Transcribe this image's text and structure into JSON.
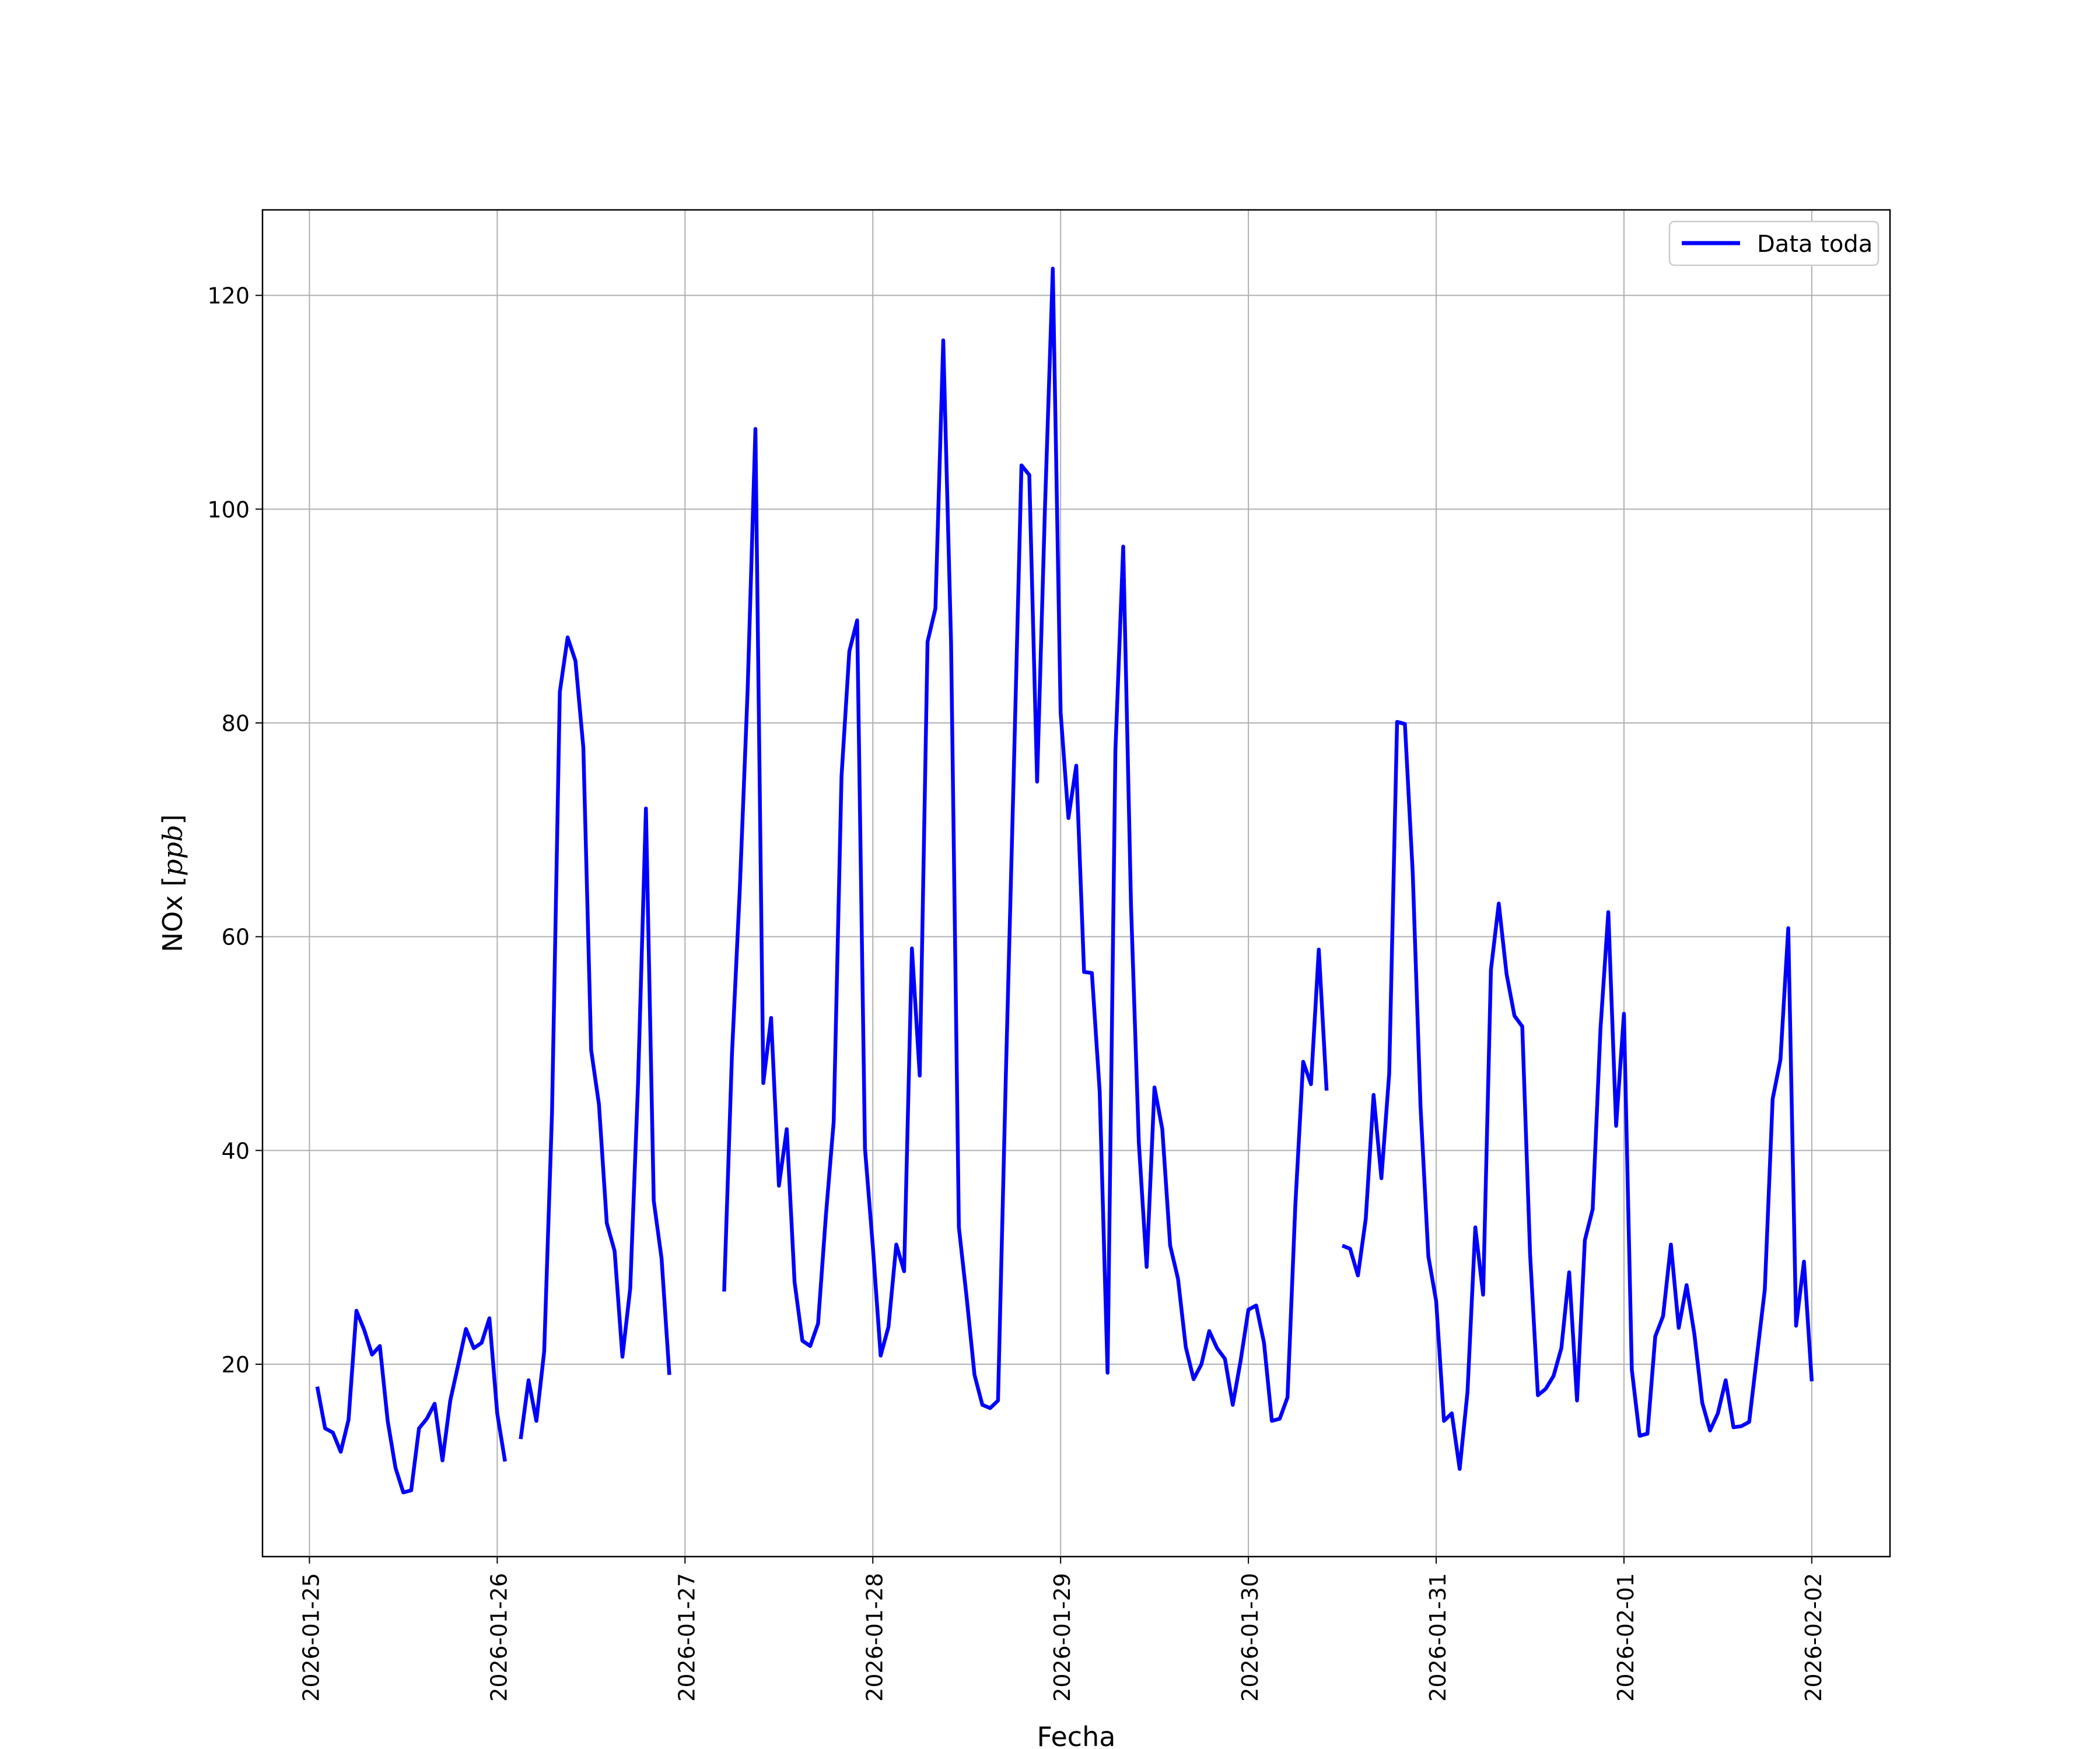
{
  "chart_data": {
    "type": "line",
    "xlabel": "Fecha",
    "ylabel_text": "NOx [",
    "ylabel_unit": "ppb",
    "ylabel_close": "]",
    "ylim": [
      2,
      128
    ],
    "xlim": [
      "2026-01-24 18:00",
      "2026-02-02 10:00"
    ],
    "grid": true,
    "legend_position": "top-right",
    "x_ticks": [
      "2026-01-25",
      "2026-01-26",
      "2026-01-27",
      "2026-01-28",
      "2026-01-29",
      "2026-01-30",
      "2026-01-31",
      "2026-02-01",
      "2026-02-02"
    ],
    "y_ticks": [
      20,
      40,
      60,
      80,
      100,
      120
    ],
    "series": [
      {
        "name": "Data toda",
        "color": "#0000ff",
        "segments": [
          [
            [
              "2026-01-25 01:00",
              17.9
            ],
            [
              "2026-01-25 02:00",
              14.0
            ],
            [
              "2026-01-25 03:00",
              13.6
            ],
            [
              "2026-01-25 04:00",
              11.8
            ],
            [
              "2026-01-25 05:00",
              14.8
            ],
            [
              "2026-01-25 06:00",
              25.0
            ],
            [
              "2026-01-25 07:00",
              23.2
            ],
            [
              "2026-01-25 08:00",
              20.9
            ],
            [
              "2026-01-25 09:00",
              21.7
            ],
            [
              "2026-01-25 10:00",
              14.7
            ],
            [
              "2026-01-25 11:00",
              10.3
            ],
            [
              "2026-01-25 12:00",
              8.0
            ],
            [
              "2026-01-25 13:00",
              8.2
            ],
            [
              "2026-01-25 14:00",
              14.0
            ],
            [
              "2026-01-25 15:00",
              14.9
            ],
            [
              "2026-01-25 16:00",
              16.3
            ],
            [
              "2026-01-25 17:00",
              11.0
            ],
            [
              "2026-01-25 18:00",
              16.6
            ],
            [
              "2026-01-25 19:00",
              19.9
            ],
            [
              "2026-01-25 20:00",
              23.3
            ],
            [
              "2026-01-25 21:00",
              21.5
            ],
            [
              "2026-01-25 22:00",
              22.0
            ],
            [
              "2026-01-25 23:00",
              24.3
            ],
            [
              "2026-01-26 00:00",
              15.4
            ],
            [
              "2026-01-26 01:00",
              10.9
            ]
          ],
          [
            [
              "2026-01-26 03:00",
              13.0
            ],
            [
              "2026-01-26 04:00",
              18.5
            ],
            [
              "2026-01-26 05:00",
              14.7
            ],
            [
              "2026-01-26 06:00",
              21.2
            ],
            [
              "2026-01-26 07:00",
              43.5
            ],
            [
              "2026-01-26 08:00",
              82.9
            ],
            [
              "2026-01-26 09:00",
              88.0
            ],
            [
              "2026-01-26 10:00",
              85.8
            ],
            [
              "2026-01-26 11:00",
              77.7
            ],
            [
              "2026-01-26 12:00",
              49.4
            ],
            [
              "2026-01-26 13:00",
              44.3
            ],
            [
              "2026-01-26 14:00",
              33.2
            ],
            [
              "2026-01-26 15:00",
              30.6
            ],
            [
              "2026-01-26 16:00",
              20.7
            ],
            [
              "2026-01-26 17:00",
              27.1
            ],
            [
              "2026-01-26 18:00",
              46.3
            ],
            [
              "2026-01-26 19:00",
              72.0
            ],
            [
              "2026-01-26 20:00",
              35.3
            ],
            [
              "2026-01-26 21:00",
              29.9
            ],
            [
              "2026-01-26 22:00",
              19.0
            ]
          ],
          [
            [
              "2026-01-27 05:00",
              26.8
            ],
            [
              "2026-01-27 06:00",
              49.0
            ],
            [
              "2026-01-27 07:00",
              64.4
            ],
            [
              "2026-01-27 08:00",
              83.0
            ],
            [
              "2026-01-27 09:00",
              107.5
            ],
            [
              "2026-01-27 10:00",
              46.3
            ],
            [
              "2026-01-27 11:00",
              52.4
            ],
            [
              "2026-01-27 12:00",
              36.7
            ],
            [
              "2026-01-27 13:00",
              42.0
            ],
            [
              "2026-01-27 14:00",
              27.7
            ],
            [
              "2026-01-27 15:00",
              22.2
            ],
            [
              "2026-01-27 16:00",
              21.7
            ],
            [
              "2026-01-27 17:00",
              23.8
            ],
            [
              "2026-01-27 18:00",
              33.9
            ],
            [
              "2026-01-27 19:00",
              42.7
            ],
            [
              "2026-01-27 20:00",
              75.0
            ],
            [
              "2026-01-27 21:00",
              86.7
            ],
            [
              "2026-01-27 22:00",
              89.6
            ],
            [
              "2026-01-27 23:00",
              40.2
            ],
            [
              "2026-01-28 00:00",
              31.0
            ],
            [
              "2026-01-28 01:00",
              20.8
            ],
            [
              "2026-01-28 02:00",
              23.5
            ],
            [
              "2026-01-28 03:00",
              31.2
            ],
            [
              "2026-01-28 04:00",
              28.7
            ],
            [
              "2026-01-28 05:00",
              58.9
            ],
            [
              "2026-01-28 06:00",
              47.0
            ],
            [
              "2026-01-28 07:00",
              87.6
            ],
            [
              "2026-01-28 08:00",
              90.7
            ],
            [
              "2026-01-28 09:00",
              115.8
            ],
            [
              "2026-01-28 10:00",
              87.5
            ],
            [
              "2026-01-28 11:00",
              32.8
            ],
            [
              "2026-01-28 12:00",
              26.2
            ],
            [
              "2026-01-28 13:00",
              19.0
            ],
            [
              "2026-01-28 14:00",
              16.2
            ],
            [
              "2026-01-28 15:00",
              15.9
            ],
            [
              "2026-01-28 16:00",
              16.6
            ],
            [
              "2026-01-28 17:00",
              47.0
            ],
            [
              "2026-01-28 18:00",
              75.0
            ],
            [
              "2026-01-28 19:00",
              104.1
            ],
            [
              "2026-01-28 20:00",
              103.2
            ],
            [
              "2026-01-28 21:00",
              74.5
            ],
            [
              "2026-01-28 22:00",
              100.0
            ],
            [
              "2026-01-28 23:00",
              122.5
            ],
            [
              "2026-01-29 00:00",
              81.0
            ],
            [
              "2026-01-29 01:00",
              71.1
            ],
            [
              "2026-01-29 02:00",
              76.0
            ],
            [
              "2026-01-29 03:00",
              56.7
            ],
            [
              "2026-01-29 04:00",
              56.6
            ],
            [
              "2026-01-29 05:00",
              45.5
            ],
            [
              "2026-01-29 06:00",
              19.2
            ],
            [
              "2026-01-29 07:00",
              77.4
            ],
            [
              "2026-01-29 08:00",
              96.5
            ],
            [
              "2026-01-29 09:00",
              62.9
            ],
            [
              "2026-01-29 10:00",
              40.7
            ],
            [
              "2026-01-29 11:00",
              29.1
            ],
            [
              "2026-01-29 12:00",
              45.9
            ],
            [
              "2026-01-29 13:00",
              42.0
            ],
            [
              "2026-01-29 14:00",
              31.1
            ],
            [
              "2026-01-29 15:00",
              28.0
            ],
            [
              "2026-01-29 16:00",
              21.6
            ],
            [
              "2026-01-29 17:00",
              18.6
            ],
            [
              "2026-01-29 18:00",
              20.0
            ],
            [
              "2026-01-29 19:00",
              23.1
            ],
            [
              "2026-01-29 20:00",
              21.5
            ],
            [
              "2026-01-29 21:00",
              20.5
            ],
            [
              "2026-01-29 22:00",
              16.2
            ],
            [
              "2026-01-29 23:00",
              20.3
            ],
            [
              "2026-01-30 00:00",
              25.1
            ],
            [
              "2026-01-30 01:00",
              25.5
            ],
            [
              "2026-01-30 02:00",
              22.0
            ],
            [
              "2026-01-30 03:00",
              14.7
            ],
            [
              "2026-01-30 04:00",
              14.9
            ],
            [
              "2026-01-30 05:00",
              16.9
            ],
            [
              "2026-01-30 06:00",
              34.9
            ],
            [
              "2026-01-30 07:00",
              48.3
            ],
            [
              "2026-01-30 08:00",
              46.2
            ],
            [
              "2026-01-30 09:00",
              58.8
            ],
            [
              "2026-01-30 10:00",
              45.6
            ]
          ],
          [
            [
              "2026-01-30 12:00",
              31.1
            ],
            [
              "2026-01-30 13:00",
              30.8
            ],
            [
              "2026-01-30 14:00",
              28.3
            ],
            [
              "2026-01-30 15:00",
              33.6
            ],
            [
              "2026-01-30 16:00",
              45.2
            ],
            [
              "2026-01-30 17:00",
              37.4
            ],
            [
              "2026-01-30 18:00",
              47.2
            ],
            [
              "2026-01-30 19:00",
              80.1
            ],
            [
              "2026-01-30 20:00",
              79.9
            ],
            [
              "2026-01-30 21:00",
              66.0
            ],
            [
              "2026-01-30 22:00",
              44.1
            ],
            [
              "2026-01-30 23:00",
              30.1
            ],
            [
              "2026-01-31 00:00",
              25.9
            ],
            [
              "2026-01-31 01:00",
              14.7
            ],
            [
              "2026-01-31 02:00",
              15.4
            ],
            [
              "2026-01-31 03:00",
              10.2
            ],
            [
              "2026-01-31 04:00",
              17.4
            ],
            [
              "2026-01-31 05:00",
              32.8
            ],
            [
              "2026-01-31 06:00",
              26.5
            ],
            [
              "2026-01-31 07:00",
              56.9
            ],
            [
              "2026-01-31 08:00",
              63.1
            ],
            [
              "2026-01-31 09:00",
              56.5
            ],
            [
              "2026-01-31 10:00",
              52.6
            ],
            [
              "2026-01-31 11:00",
              51.6
            ],
            [
              "2026-01-31 12:00",
              30.3
            ],
            [
              "2026-01-31 13:00",
              17.1
            ],
            [
              "2026-01-31 14:00",
              17.7
            ],
            [
              "2026-01-31 15:00",
              18.9
            ],
            [
              "2026-01-31 16:00",
              21.5
            ],
            [
              "2026-01-31 17:00",
              28.6
            ],
            [
              "2026-01-31 18:00",
              16.6
            ],
            [
              "2026-01-31 19:00",
              31.6
            ],
            [
              "2026-01-31 20:00",
              34.5
            ],
            [
              "2026-01-31 21:00",
              51.4
            ],
            [
              "2026-01-31 22:00",
              62.3
            ],
            [
              "2026-01-31 23:00",
              42.3
            ],
            [
              "2026-02-01 00:00",
              52.8
            ],
            [
              "2026-02-01 01:00",
              19.5
            ],
            [
              "2026-02-01 02:00",
              13.3
            ],
            [
              "2026-02-01 03:00",
              13.5
            ],
            [
              "2026-02-01 04:00",
              22.6
            ],
            [
              "2026-02-01 05:00",
              24.5
            ],
            [
              "2026-02-01 06:00",
              31.2
            ],
            [
              "2026-02-01 07:00",
              23.4
            ],
            [
              "2026-02-01 08:00",
              27.4
            ],
            [
              "2026-02-01 09:00",
              22.8
            ],
            [
              "2026-02-01 10:00",
              16.4
            ],
            [
              "2026-02-01 11:00",
              13.8
            ],
            [
              "2026-02-01 12:00",
              15.4
            ],
            [
              "2026-02-01 13:00",
              18.5
            ],
            [
              "2026-02-01 14:00",
              14.1
            ],
            [
              "2026-02-01 15:00",
              14.2
            ],
            [
              "2026-02-01 16:00",
              14.6
            ],
            [
              "2026-02-01 17:00",
              20.8
            ],
            [
              "2026-02-01 18:00",
              27.0
            ],
            [
              "2026-02-01 19:00",
              44.8
            ],
            [
              "2026-02-01 20:00",
              48.5
            ],
            [
              "2026-02-01 21:00",
              60.8
            ],
            [
              "2026-02-01 22:00",
              23.6
            ],
            [
              "2026-02-01 23:00",
              29.6
            ],
            [
              "2026-02-02 00:00",
              18.4
            ]
          ]
        ]
      }
    ]
  }
}
